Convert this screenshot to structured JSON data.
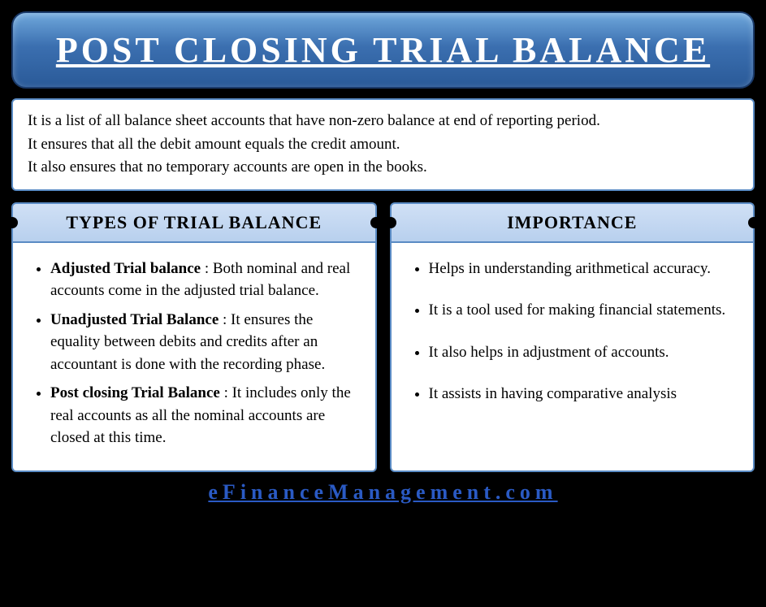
{
  "title": "POST CLOSING TRIAL BALANCE",
  "description": {
    "line1": "It is a list of all balance sheet accounts that have non-zero balance at end of reporting period.",
    "line2": "It ensures that all the debit amount equals the credit amount.",
    "line3": "It also ensures that no temporary accounts are open in the books."
  },
  "left": {
    "heading": "TYPES OF TRIAL BALANCE",
    "items": [
      {
        "term": "Adjusted Trial balance",
        "text": " : Both nominal and real accounts come in the adjusted trial balance."
      },
      {
        "term": "Unadjusted Trial Balance",
        "text": " : It ensures the equality between debits and credits after an accountant is done with the recording phase."
      },
      {
        "term": "Post closing Trial Balance",
        "text": " : It includes only the real accounts as all the nominal accounts are closed at this time."
      }
    ]
  },
  "right": {
    "heading": "IMPORTANCE",
    "items": [
      "Helps in understanding arithmetical accuracy.",
      "It is a tool used for making financial statements.",
      "It also helps in adjustment of accounts.",
      "It assists in having comparative analysis"
    ]
  },
  "footer": "eFinanceManagement.com",
  "colors": {
    "background": "#000000",
    "banner_grad_top": "#6fa8dc",
    "banner_grad_bottom": "#2a5a98",
    "border": "#5a8bc4",
    "tab_bg": "#c8dcf2",
    "link": "#2a5ac4"
  }
}
